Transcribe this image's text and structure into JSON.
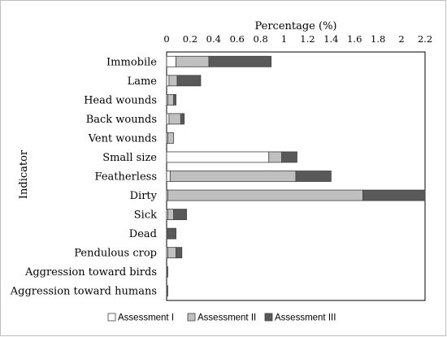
{
  "chart_data": {
    "type": "bar",
    "orientation": "horizontal",
    "stacked": true,
    "xlabel": "Percentage (%)",
    "ylabel": "Indicator",
    "xlim": [
      0,
      2.2
    ],
    "xticks": [
      "0",
      "0.2",
      "0.4",
      "0.6",
      "0.8",
      "1",
      "1.2",
      "1.4",
      "1.6",
      "1.8",
      "2",
      "2.2"
    ],
    "grid": false,
    "legend_position": "bottom",
    "categories": [
      "Immobile",
      "Lame",
      "Head wounds",
      "Back wounds",
      "Vent wounds",
      "Small size",
      "Featherless",
      "Dirty",
      "Sick",
      "Dead",
      "Pendulous crop",
      "Aggression toward birds",
      "Aggression toward humans"
    ],
    "series": [
      {
        "name": "Assessment I",
        "color": "#ffffff",
        "values": [
          0.08,
          0.02,
          0.01,
          0.02,
          0.01,
          0.87,
          0.03,
          0.01,
          0.01,
          0.0,
          0.01,
          0.0,
          0.0
        ]
      },
      {
        "name": "Assessment II",
        "color": "#c0c0c0",
        "values": [
          0.28,
          0.07,
          0.05,
          0.1,
          0.05,
          0.11,
          1.07,
          1.66,
          0.05,
          0.0,
          0.07,
          0.0,
          0.0
        ]
      },
      {
        "name": "Assessment III",
        "color": "#595959",
        "values": [
          0.53,
          0.2,
          0.02,
          0.03,
          0.0,
          0.13,
          0.3,
          0.53,
          0.11,
          0.08,
          0.05,
          0.01,
          0.01
        ]
      }
    ]
  }
}
